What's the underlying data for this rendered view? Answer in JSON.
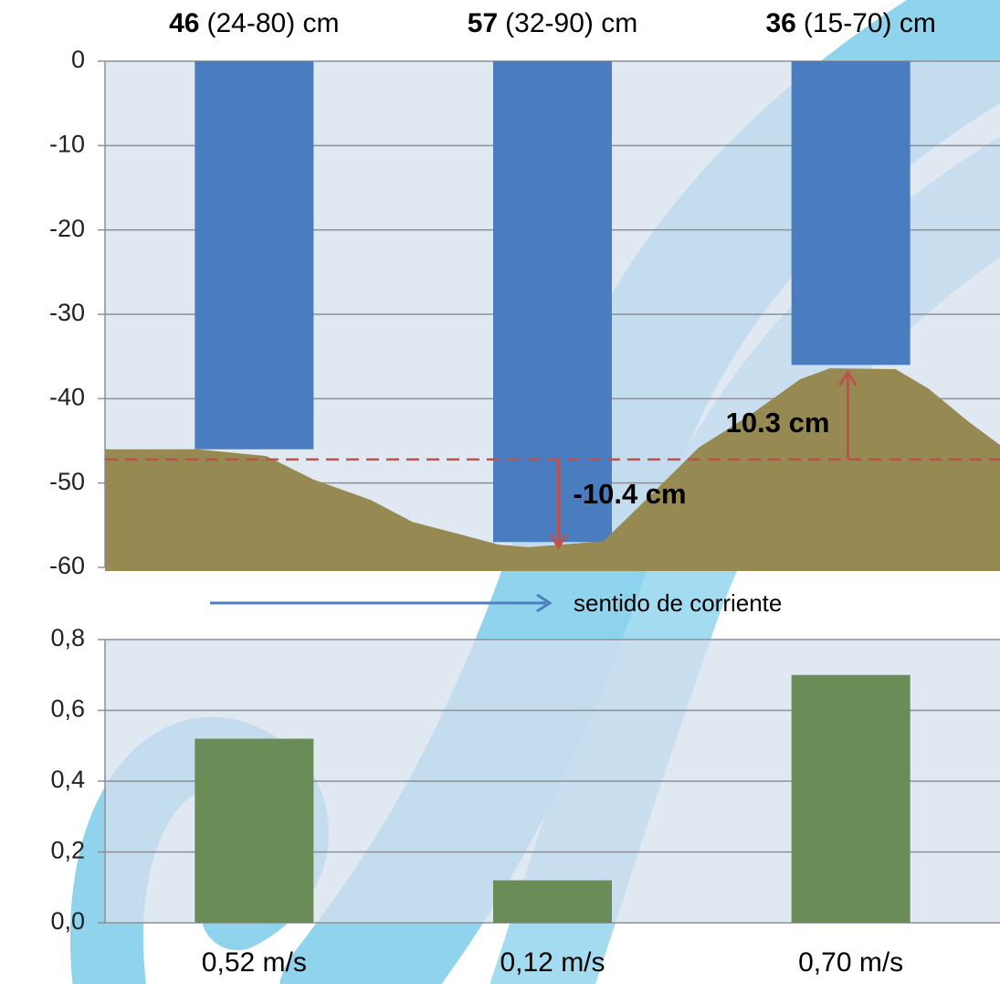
{
  "chart_data": [
    {
      "type": "bar",
      "values": [
        -46,
        -57,
        -36
      ],
      "value_labels": [
        "46",
        "57",
        "36"
      ],
      "ranges": [
        "(24-80) cm",
        "(32-90) cm",
        "(15-70) cm"
      ],
      "color": "#4a7cc0",
      "ylim": [
        -60,
        0
      ],
      "yticks": [
        0,
        -10,
        -20,
        -30,
        -40,
        -50,
        -60
      ],
      "grid": true,
      "terrain": {
        "color": "#968a52",
        "x": [
          0,
          0.31,
          0.54,
          0.7,
          0.89,
          1.03,
          1.32,
          1.42,
          1.67,
          1.79,
          1.99,
          2.16,
          2.33,
          2.43,
          2.65,
          2.76,
          2.89,
          3
        ],
        "values": [
          -46,
          -46,
          -46.8,
          -49.6,
          -52,
          -54.6,
          -57.3,
          -57.6,
          -56.9,
          -52.8,
          -45.8,
          -42,
          -37.7,
          -36.4,
          -36.5,
          -38.8,
          -42.6,
          -45.5
        ]
      },
      "xlim": [
        0,
        3
      ],
      "reference": -47.2,
      "annotations": [
        {
          "x": 1.52,
          "value": -10.4,
          "label": "-10.4 cm"
        },
        {
          "x": 2.49,
          "value": 10.3,
          "label": "10.3 cm"
        }
      ],
      "flow_label": "sentido de corriente"
    },
    {
      "type": "bar",
      "values": [
        0.52,
        0.12,
        0.7
      ],
      "value_labels": [
        "0,52 m/s",
        "0,12 m/s",
        "0,70 m/s"
      ],
      "color": "#6a8c56",
      "ylim": [
        0,
        0.8
      ],
      "yticks": [
        {
          "value": 0,
          "label": "0,0"
        },
        {
          "value": 0.2,
          "label": "0,2"
        },
        {
          "value": 0.4,
          "label": "0,4"
        },
        {
          "value": 0.6,
          "label": "0,6"
        },
        {
          "value": 0.8,
          "label": "0,8"
        }
      ],
      "grid": true
    }
  ]
}
